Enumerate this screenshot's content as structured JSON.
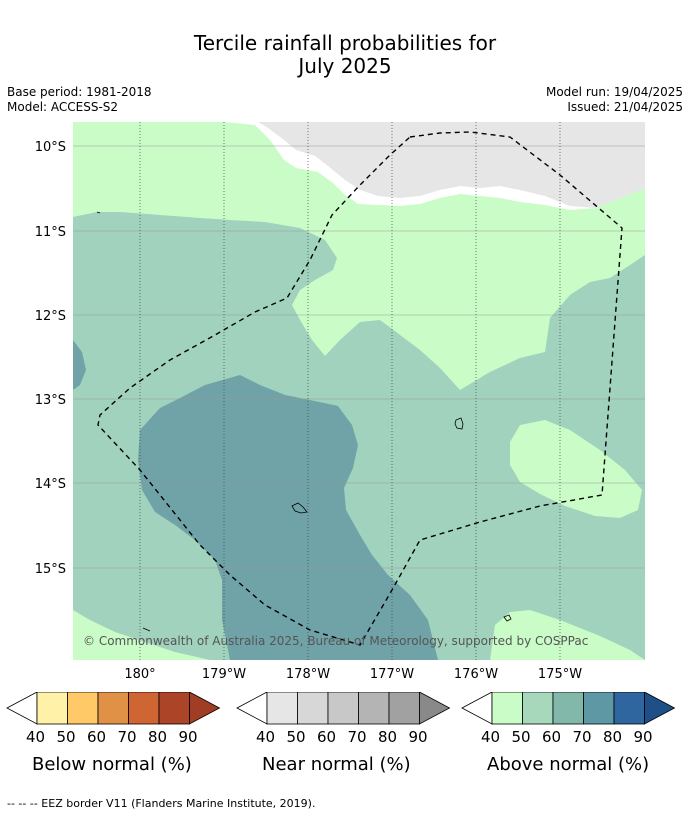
{
  "title_line1": "Tercile rainfall probabilities for",
  "title_line2": "July 2025",
  "meta": {
    "base_period": "Base period: 1981-2018",
    "model": "Model: ACCESS-S2",
    "model_run": "Model run: 19/04/2025",
    "issued": "Issued: 21/04/2025"
  },
  "map": {
    "lat_labels": [
      "10°S",
      "11°S",
      "12°S",
      "13°S",
      "14°S",
      "15°S"
    ],
    "lon_labels": [
      "180°",
      "179°W",
      "178°W",
      "177°W",
      "176°W",
      "175°W"
    ],
    "copyright": "© Commonwealth of Australia 2025, Bureau of Meteorology, supported by COSPPac"
  },
  "legends": [
    {
      "name": "Below normal (%)",
      "ticks": [
        "40",
        "50",
        "60",
        "70",
        "80",
        "90"
      ],
      "colors": [
        "#ffffff",
        "#fff1a8",
        "#fec966",
        "#e09146",
        "#cf6532",
        "#ac4427",
        "#a13d24"
      ]
    },
    {
      "name": "Near normal (%)",
      "ticks": [
        "40",
        "50",
        "60",
        "70",
        "80",
        "90"
      ],
      "colors": [
        "#ffffff",
        "#e6e6e6",
        "#d7d7d7",
        "#c8c8c8",
        "#b4b4b4",
        "#a1a1a1",
        "#898989"
      ]
    },
    {
      "name": "Above normal (%)",
      "ticks": [
        "40",
        "50",
        "60",
        "70",
        "80",
        "90"
      ],
      "colors": [
        "#ffffff",
        "#c9fcc6",
        "#a7d8bc",
        "#82b8aa",
        "#5e98a5",
        "#2f66a0",
        "#1e4f86"
      ]
    }
  ],
  "footer": "--  --  -- EEZ border V11 (Flanders Marine Institute, 2019)."
}
